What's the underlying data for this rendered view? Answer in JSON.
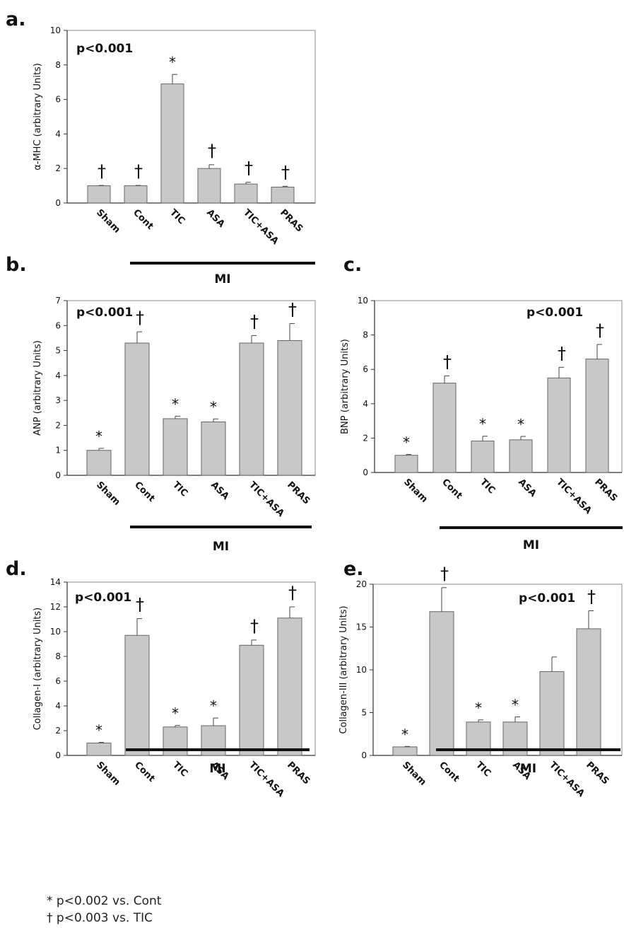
{
  "chart_data": [
    {
      "panel": "a.",
      "type": "bar",
      "categories": [
        "Sham",
        "Cont",
        "TIC",
        "ASA",
        "TIC+ASA",
        "PRAS"
      ],
      "values": [
        1.0,
        1.0,
        6.9,
        2.0,
        1.1,
        0.92
      ],
      "errors": [
        0.02,
        0.02,
        0.55,
        0.22,
        0.1,
        0.05
      ],
      "marks": [
        "†",
        "†",
        "*",
        "†",
        "†",
        "†"
      ],
      "ylabel": "α-MHC (arbitrary Units)",
      "ylim": [
        0,
        10
      ],
      "yticks": [
        0,
        2,
        4,
        6,
        8,
        10
      ],
      "annotation": "p<0.001",
      "annotation_pos": "top-left",
      "group_label": "MI"
    },
    {
      "panel": "b.",
      "type": "bar",
      "categories": [
        "Sham",
        "Cont",
        "TIC",
        "ASA",
        "TIC+ASA",
        "PRAS"
      ],
      "values": [
        1.0,
        5.3,
        2.27,
        2.14,
        5.3,
        5.4
      ],
      "errors": [
        0.08,
        0.45,
        0.1,
        0.12,
        0.3,
        0.68
      ],
      "marks": [
        "*",
        "†",
        "*",
        "*",
        "†",
        "†"
      ],
      "ylabel": "ANP (arbitrary Units)",
      "ylim": [
        0,
        7
      ],
      "yticks": [
        0,
        1,
        2,
        3,
        4,
        5,
        6,
        7
      ],
      "annotation": "p<0.001",
      "annotation_pos": "top-left",
      "group_label": "MI"
    },
    {
      "panel": "c.",
      "type": "bar",
      "categories": [
        "Sham",
        "Cont",
        "TIC",
        "ASA",
        "TIC+ASA",
        "PRAS"
      ],
      "values": [
        1.0,
        5.2,
        1.83,
        1.9,
        5.5,
        6.6
      ],
      "errors": [
        0.05,
        0.42,
        0.28,
        0.2,
        0.62,
        0.85
      ],
      "marks": [
        "*",
        "†",
        "*",
        "*",
        "†",
        "†"
      ],
      "ylabel": "BNP (arbitrary Units)",
      "ylim": [
        0,
        10
      ],
      "yticks": [
        0,
        2,
        4,
        6,
        8,
        10
      ],
      "annotation": "p<0.001",
      "annotation_pos": "top-right",
      "group_label": "MI"
    },
    {
      "panel": "d.",
      "type": "bar",
      "categories": [
        "Sham",
        "Cont",
        "TIC",
        "ASA",
        "TIC+ASA",
        "PRAS"
      ],
      "values": [
        1.0,
        9.7,
        2.3,
        2.4,
        8.9,
        11.1
      ],
      "errors": [
        0.05,
        1.35,
        0.12,
        0.62,
        0.42,
        0.9
      ],
      "marks": [
        "*",
        "†",
        "*",
        "*",
        "†",
        "†"
      ],
      "ylabel": "Collagen-I (arbitrary Units)",
      "ylim": [
        0,
        14
      ],
      "yticks": [
        0,
        2,
        4,
        6,
        8,
        10,
        12,
        14
      ],
      "annotation": "p<0.001",
      "annotation_pos": "top-left",
      "group_label": "MI"
    },
    {
      "panel": "e.",
      "type": "bar",
      "categories": [
        "Sham",
        "Cont",
        "TIC",
        "ASA",
        "TIC+ASA",
        "PRAS"
      ],
      "values": [
        1.0,
        16.8,
        3.9,
        3.9,
        9.8,
        14.8
      ],
      "errors": [
        0.05,
        2.8,
        0.25,
        0.6,
        1.7,
        2.1
      ],
      "marks": [
        "*",
        "†",
        "*",
        "*",
        "",
        "†"
      ],
      "ylabel": "Collagen-III (arbitrary Units)",
      "ylim": [
        0,
        20
      ],
      "yticks": [
        0,
        5,
        10,
        15,
        20
      ],
      "annotation": "p<0.001",
      "annotation_pos": "top-right",
      "group_label": "MI"
    }
  ],
  "legend": {
    "line1": "* p<0.002 vs. Cont",
    "line2": "† p<0.003 vs. TIC"
  },
  "colors": {
    "bar_fill": "#c8c8c8",
    "bar_stroke": "#666666",
    "frame": "#8a8a8a",
    "ink": "#111111"
  }
}
